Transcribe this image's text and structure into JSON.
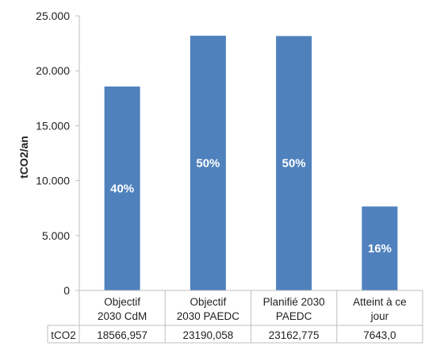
{
  "chart_data": {
    "type": "bar",
    "ylabel": "tCO2/an",
    "ylim": [
      0,
      25000
    ],
    "y_ticks": [
      0,
      5000,
      10000,
      15000,
      20000,
      25000
    ],
    "y_tick_labels": [
      "0",
      "5.000",
      "10.000",
      "15.000",
      "20.000",
      "25.000"
    ],
    "grid": false,
    "categories": [
      [
        "Objectif",
        "2030 CdM"
      ],
      [
        "Objectif",
        "2030 PAEDC"
      ],
      [
        "Planifié 2030",
        "PAEDC"
      ],
      [
        "Atteint à ce",
        "jour"
      ]
    ],
    "values": [
      18566.957,
      23190.058,
      23162.775,
      7643.0
    ],
    "data_labels": [
      "40%",
      "50%",
      "50%",
      "16%"
    ],
    "bar_color": "#4f81bd",
    "data_table": {
      "row_label": "tCO2",
      "values": [
        "18566,957",
        "23190,058",
        "23162,775",
        "7643,0"
      ]
    }
  }
}
